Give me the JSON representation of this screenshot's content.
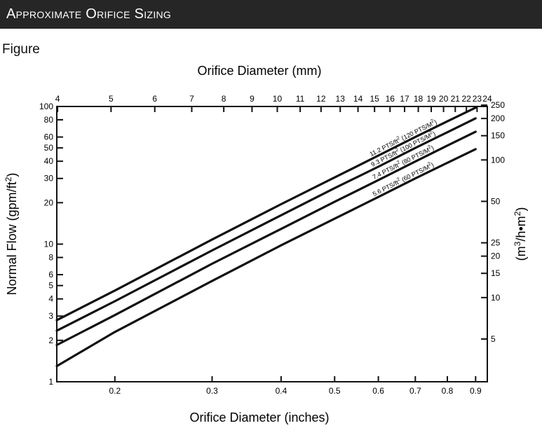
{
  "header": {
    "title": "Approximate Orifice Sizing"
  },
  "figure_label": "Figure",
  "colors": {
    "header_bg": "#262626",
    "header_text": "#ffffff",
    "ink": "#111111"
  },
  "chart_data": {
    "type": "line",
    "title": "",
    "xlabel": "Orifice Diameter (inches)",
    "x2label": "Orifice Diameter (mm)",
    "ylabel": "Normal Flow (gpm/ft2)",
    "y2label": "(m3/h•m2)",
    "x_scale": "log",
    "y_scale": "log",
    "xlim": [
      0.157,
      0.945
    ],
    "ylim": [
      1,
      100
    ],
    "grid": false,
    "x_ticks": [
      0.2,
      0.3,
      0.4,
      0.5,
      0.6,
      0.7,
      0.8,
      0.9
    ],
    "x_tick_labels": [
      "0.2",
      "0.3",
      "0.4",
      "0.5",
      "0.6",
      "0.7",
      "0.8",
      "0.9"
    ],
    "x2_ticks_mm": [
      4,
      5,
      6,
      7,
      8,
      9,
      10,
      11,
      12,
      13,
      14,
      15,
      16,
      17,
      18,
      19,
      20,
      21,
      22,
      23,
      24
    ],
    "y_ticks": [
      1,
      2,
      3,
      4,
      5,
      6,
      8,
      10,
      20,
      30,
      40,
      50,
      60,
      80,
      100
    ],
    "y2_ticks": [
      5,
      10,
      15,
      20,
      25,
      50,
      100,
      150,
      200,
      250
    ],
    "series": [
      {
        "name": "11.2 PTS/ft2 (120 PTS/M2)",
        "x": [
          0.157,
          0.2,
          0.3,
          0.4,
          0.5,
          0.6,
          0.7,
          0.8,
          0.9
        ],
        "values": [
          2.8,
          4.6,
          10.8,
          19.5,
          30.5,
          44,
          60,
          78,
          98
        ]
      },
      {
        "name": "9.3 PTS/ft2 (100 PTS/M2)",
        "x": [
          0.157,
          0.2,
          0.3,
          0.4,
          0.5,
          0.6,
          0.7,
          0.8,
          0.9
        ],
        "values": [
          2.35,
          3.85,
          9,
          16.2,
          25.5,
          36.5,
          50,
          65,
          82
        ]
      },
      {
        "name": "7.4 PTS/ft2 (80 PTS/M2)",
        "x": [
          0.157,
          0.2,
          0.3,
          0.4,
          0.5,
          0.6,
          0.7,
          0.8,
          0.9
        ],
        "values": [
          1.85,
          3.05,
          7.2,
          12.9,
          20.3,
          29.2,
          39.8,
          52,
          65.5
        ]
      },
      {
        "name": "5.6 PTS/ft2 (60 PTS/M2)",
        "x": [
          0.157,
          0.2,
          0.3,
          0.4,
          0.5,
          0.6,
          0.7,
          0.8,
          0.9
        ],
        "values": [
          1.3,
          2.3,
          5.4,
          9.8,
          15.3,
          22,
          30,
          39,
          49
        ]
      }
    ],
    "curve_labels": [
      {
        "pts": "11.2 PTS/ft",
        "sup": "2",
        "rest": " (120 PTS/M",
        "sup2": "2",
        "end": ")"
      },
      {
        "pts": "9.3 PTS/ft",
        "sup": "2",
        "rest": " (100 PTS/M",
        "sup2": "2",
        "end": ")"
      },
      {
        "pts": "7.4 PTS/ft",
        "sup": "2",
        "rest": " (80 PTS/M",
        "sup2": "2",
        "end": ")"
      },
      {
        "pts": "5.6 PTS/ft",
        "sup": "2",
        "rest": " (60 PTS/M",
        "sup2": "2",
        "end": ")"
      }
    ],
    "ylabel_parts": {
      "main": "Normal Flow (gpm/ft",
      "sup": "2",
      "end": ")"
    },
    "y2label_parts": {
      "main": "(m",
      "sup": "3",
      "mid": "/h•m",
      "sup2": "2",
      "end": ")"
    }
  }
}
